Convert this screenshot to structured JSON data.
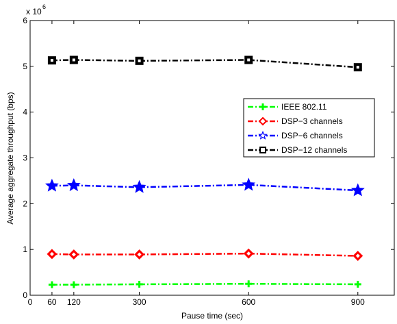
{
  "chart_data": {
    "type": "line",
    "title": "",
    "xlabel": "Pause time (sec)",
    "ylabel": "Average aggregate throughput (bps)",
    "y_multiplier": "x 10",
    "y_multiplier_exp": "6",
    "xlim": [
      0,
      1000
    ],
    "ylim": [
      0,
      6
    ],
    "x_ticks": [
      0,
      60,
      120,
      300,
      600,
      900
    ],
    "y_ticks": [
      0,
      1,
      2,
      3,
      4,
      5,
      6
    ],
    "grid": false,
    "legend_position": "upper-right",
    "x": [
      60,
      120,
      300,
      600,
      900
    ],
    "series": [
      {
        "name": "IEEE 802.11",
        "color": "#00ff00",
        "marker": "plus",
        "values": [
          0.23,
          0.23,
          0.24,
          0.25,
          0.24
        ]
      },
      {
        "name": "DSP−3 channels",
        "color": "#ff0000",
        "marker": "diamond",
        "values": [
          0.9,
          0.89,
          0.89,
          0.91,
          0.86
        ]
      },
      {
        "name": "DSP−6 channels",
        "color": "#0000ff",
        "marker": "star",
        "values": [
          2.39,
          2.4,
          2.36,
          2.41,
          2.29
        ]
      },
      {
        "name": "DSP−12 channels",
        "color": "#000000",
        "marker": "square",
        "values": [
          5.13,
          5.14,
          5.12,
          5.14,
          4.98
        ]
      }
    ]
  }
}
